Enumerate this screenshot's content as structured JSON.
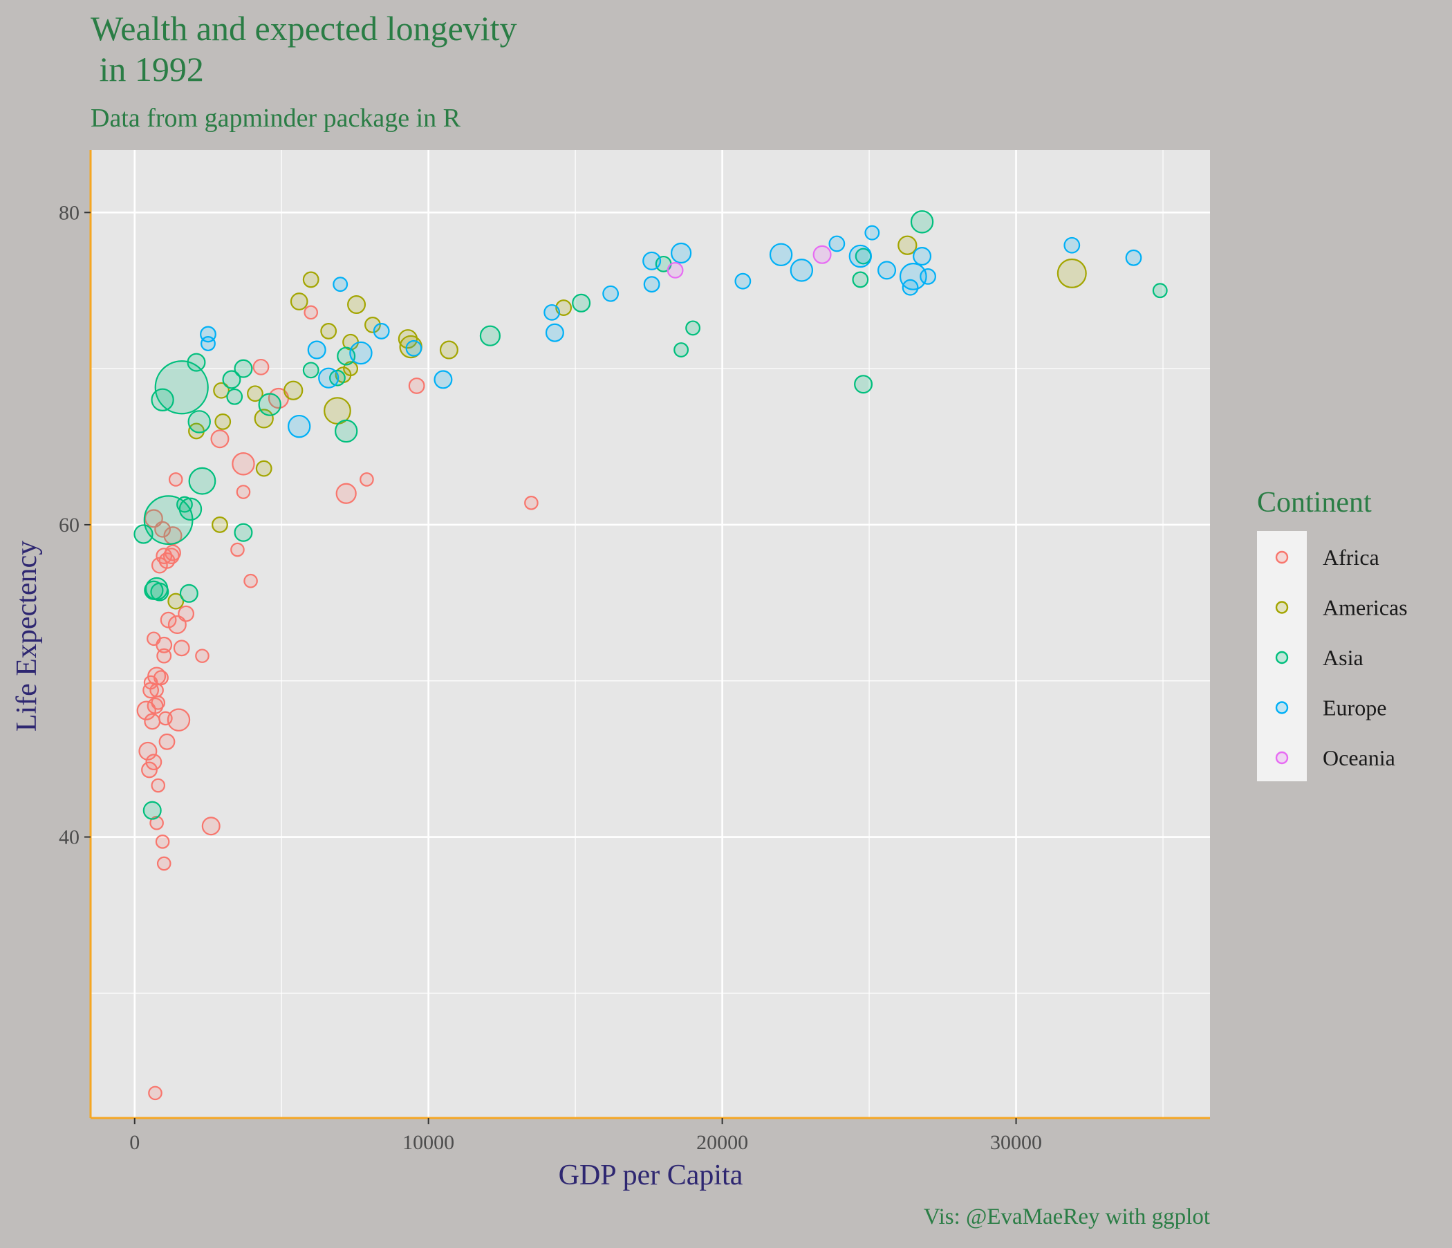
{
  "chart_data": {
    "type": "scatter",
    "title_lines": [
      "Wealth and expected longevity",
      " in 1992"
    ],
    "subtitle": "Data from gapminder package in R",
    "caption": "Vis: @EvaMaeRey with ggplot",
    "xlabel": "GDP per Capita",
    "ylabel": "Life Expectency",
    "xlim": [
      -1500,
      36600
    ],
    "ylim": [
      22,
      84
    ],
    "x_ticks": [
      0,
      10000,
      20000,
      30000
    ],
    "x_tick_labels": [
      "0",
      "10000",
      "20000",
      "30000"
    ],
    "y_ticks": [
      40,
      60,
      80
    ],
    "y_tick_labels": [
      "40",
      "60",
      "80"
    ],
    "y_minor_ticks": [
      30,
      50,
      70
    ],
    "x_minor_ticks": [
      5000,
      15000,
      25000,
      35000
    ],
    "grid": true,
    "legend": {
      "title": "Continent",
      "position": "right",
      "entries": [
        "Africa",
        "Americas",
        "Asia",
        "Europe",
        "Oceania"
      ]
    },
    "colors": {
      "Africa": "#f8766d",
      "Americas": "#a3a500",
      "Asia": "#00bf7d",
      "Europe": "#00b0f6",
      "Oceania": "#e76bf3",
      "panel_background": "#e6e6e6",
      "plot_background": "#c0bdbb",
      "axis_line": "#f5a623",
      "grid": "#ffffff"
    },
    "series": [
      {
        "name": "Africa",
        "points": [
          [
            700,
            23.6,
            1
          ],
          [
            750,
            40.9,
            1
          ],
          [
            950,
            39.7,
            1
          ],
          [
            1000,
            38.3,
            1
          ],
          [
            2600,
            40.7,
            2
          ],
          [
            650,
            44.8,
            1.5
          ],
          [
            500,
            44.3,
            1.5
          ],
          [
            450,
            45.5,
            2
          ],
          [
            1100,
            46.1,
            1.5
          ],
          [
            800,
            43.3,
            1
          ],
          [
            400,
            48.1,
            2.2
          ],
          [
            1500,
            47.5,
            3
          ],
          [
            600,
            47.4,
            1.5
          ],
          [
            1050,
            47.6,
            1
          ],
          [
            700,
            48.4,
            1.5
          ],
          [
            800,
            48.6,
            1
          ],
          [
            550,
            49.4,
            1.5
          ],
          [
            750,
            49.4,
            1
          ],
          [
            550,
            49.9,
            1
          ],
          [
            900,
            50.2,
            1.2
          ],
          [
            750,
            50.3,
            2
          ],
          [
            1000,
            51.6,
            1.2
          ],
          [
            2300,
            51.6,
            1
          ],
          [
            1600,
            52.1,
            1.5
          ],
          [
            1000,
            52.3,
            1.5
          ],
          [
            650,
            52.7,
            1
          ],
          [
            1150,
            53.9,
            1.5
          ],
          [
            1450,
            53.6,
            2
          ],
          [
            1750,
            54.3,
            1.5
          ],
          [
            850,
            57.4,
            1.5
          ],
          [
            1100,
            57.7,
            1.5
          ],
          [
            1000,
            58.0,
            1.5
          ],
          [
            1300,
            58.2,
            1.5
          ],
          [
            1250,
            58.0,
            1.5
          ],
          [
            3500,
            58.4,
            1
          ],
          [
            3950,
            56.4,
            1
          ],
          [
            1300,
            59.3,
            2
          ],
          [
            950,
            59.7,
            1.5
          ],
          [
            650,
            60.4,
            2
          ],
          [
            1400,
            62.9,
            1
          ],
          [
            3700,
            62.1,
            1
          ],
          [
            3700,
            63.9,
            3
          ],
          [
            7900,
            62.9,
            1
          ],
          [
            7200,
            62.0,
            2.5
          ],
          [
            13500,
            61.4,
            1
          ],
          [
            2900,
            65.5,
            2
          ],
          [
            4900,
            68.1,
            2.5
          ],
          [
            9600,
            68.9,
            1.5
          ],
          [
            4300,
            70.1,
            1.5
          ],
          [
            6000,
            73.6,
            1
          ]
        ]
      },
      {
        "name": "Americas",
        "points": [
          [
            2900,
            60.0,
            1.5
          ],
          [
            1400,
            55.1,
            1.5
          ],
          [
            2100,
            66.0,
            1.5
          ],
          [
            3000,
            66.6,
            1.5
          ],
          [
            2950,
            68.6,
            1.5
          ],
          [
            4100,
            68.4,
            1.5
          ],
          [
            4400,
            66.8,
            2.2
          ],
          [
            4400,
            63.6,
            1.5
          ],
          [
            5400,
            68.6,
            2.2
          ],
          [
            6900,
            67.3,
            4
          ],
          [
            7100,
            69.6,
            1.5
          ],
          [
            7350,
            70.0,
            1.2
          ],
          [
            5600,
            74.3,
            1.8
          ],
          [
            6000,
            75.7,
            1.5
          ],
          [
            6600,
            72.4,
            1.5
          ],
          [
            7350,
            71.7,
            1.5
          ],
          [
            7550,
            74.1,
            2
          ],
          [
            8100,
            72.8,
            1.5
          ],
          [
            9300,
            71.9,
            2.2
          ],
          [
            9400,
            71.4,
            3
          ],
          [
            10700,
            71.2,
            2
          ],
          [
            14600,
            73.9,
            1.5
          ],
          [
            26300,
            77.9,
            2.2
          ],
          [
            31900,
            76.1,
            4.5
          ]
        ]
      },
      {
        "name": "Asia",
        "points": [
          [
            300,
            59.4,
            2.2
          ],
          [
            650,
            55.8,
            2.2
          ],
          [
            750,
            55.9,
            3
          ],
          [
            850,
            55.7,
            2
          ],
          [
            1850,
            55.6,
            2
          ],
          [
            1700,
            61.3,
            1.5
          ],
          [
            1150,
            60.3,
            9
          ],
          [
            1900,
            61.0,
            3
          ],
          [
            2300,
            62.8,
            4
          ],
          [
            3700,
            59.5,
            2
          ],
          [
            600,
            41.7,
            2
          ],
          [
            950,
            68.0,
            3
          ],
          [
            1600,
            68.8,
            10
          ],
          [
            2200,
            66.6,
            3
          ],
          [
            2100,
            70.4,
            2
          ],
          [
            3300,
            69.3,
            2
          ],
          [
            3400,
            68.2,
            1.5
          ],
          [
            3700,
            70.0,
            2
          ],
          [
            4600,
            67.7,
            3
          ],
          [
            6000,
            69.9,
            1.5
          ],
          [
            6900,
            69.4,
            1.5
          ],
          [
            7200,
            70.8,
            2
          ],
          [
            7200,
            66.0,
            3
          ],
          [
            12100,
            72.1,
            2.5
          ],
          [
            15200,
            74.2,
            2
          ],
          [
            18000,
            76.7,
            1.5
          ],
          [
            19000,
            72.6,
            1.2
          ],
          [
            18600,
            71.2,
            1.2
          ],
          [
            24800,
            69.0,
            2
          ],
          [
            24700,
            75.7,
            1.5
          ],
          [
            24800,
            77.2,
            1.5
          ],
          [
            26800,
            79.4,
            3
          ],
          [
            34900,
            75.0,
            1.2
          ]
        ]
      },
      {
        "name": "Europe",
        "points": [
          [
            2500,
            71.6,
            1.2
          ],
          [
            2500,
            72.2,
            1.5
          ],
          [
            6200,
            71.2,
            2
          ],
          [
            5600,
            66.3,
            3
          ],
          [
            6600,
            69.4,
            2.5
          ],
          [
            7000,
            75.4,
            1.2
          ],
          [
            7700,
            71.0,
            3
          ],
          [
            8400,
            72.4,
            1.5
          ],
          [
            9500,
            71.3,
            1.5
          ],
          [
            10500,
            69.3,
            2
          ],
          [
            14200,
            73.6,
            1.5
          ],
          [
            14300,
            72.3,
            2
          ],
          [
            16200,
            74.8,
            1.5
          ],
          [
            17600,
            75.4,
            1.5
          ],
          [
            17600,
            76.9,
            2
          ],
          [
            18600,
            77.4,
            2.5
          ],
          [
            20700,
            75.6,
            1.5
          ],
          [
            22000,
            77.3,
            3
          ],
          [
            22700,
            76.3,
            3
          ],
          [
            23900,
            78.0,
            1.5
          ],
          [
            24700,
            77.2,
            3
          ],
          [
            25100,
            78.7,
            1.2
          ],
          [
            25600,
            76.3,
            2
          ],
          [
            26400,
            75.2,
            1.5
          ],
          [
            26500,
            75.9,
            4
          ],
          [
            26800,
            77.2,
            2
          ],
          [
            27000,
            75.9,
            1.5
          ],
          [
            31900,
            77.9,
            1.5
          ],
          [
            34000,
            77.1,
            1.5
          ]
        ]
      },
      {
        "name": "Oceania",
        "points": [
          [
            18400,
            76.3,
            1.5
          ],
          [
            23400,
            77.3,
            2
          ]
        ]
      }
    ]
  }
}
